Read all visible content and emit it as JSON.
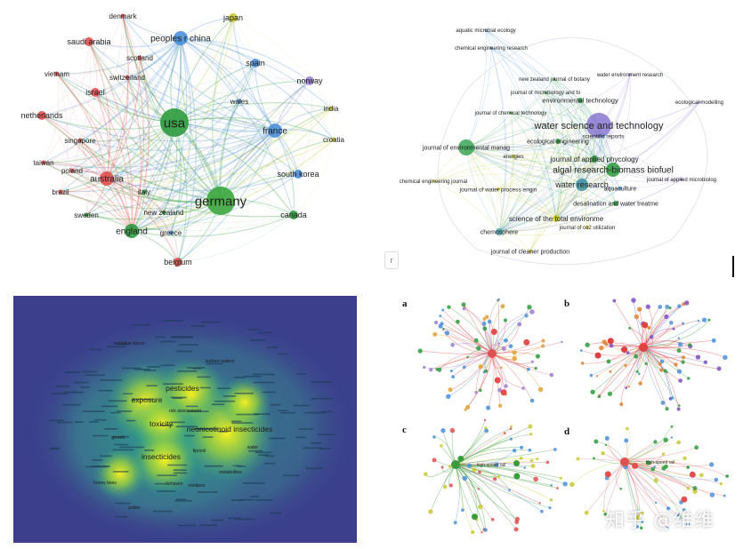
{
  "country_map": {
    "nodes": [
      {
        "label": "usa",
        "color": "#2e9b3e",
        "size": "xl"
      },
      {
        "label": "germany",
        "color": "#3aa63d",
        "size": "xl"
      },
      {
        "label": "peoples r china",
        "color": "#4a90d9",
        "size": "m"
      },
      {
        "label": "france",
        "color": "#4a90d9",
        "size": "m"
      },
      {
        "label": "spain",
        "color": "#4a90d9",
        "size": "s"
      },
      {
        "label": "japan",
        "color": "#c8c832",
        "size": "s"
      },
      {
        "label": "norway",
        "color": "#9b7fd1",
        "size": "s"
      },
      {
        "label": "india",
        "color": "#c8c832",
        "size": "xs"
      },
      {
        "label": "croatia",
        "color": "#c8c832",
        "size": "xs"
      },
      {
        "label": "south korea",
        "color": "#4a90d9",
        "size": "s"
      },
      {
        "label": "canada",
        "color": "#2e9b3e",
        "size": "s"
      },
      {
        "label": "wales",
        "color": "#4a90d9",
        "size": "xs"
      },
      {
        "label": "denmark",
        "color": "#e05050",
        "size": "xs"
      },
      {
        "label": "saudi arabia",
        "color": "#e05050",
        "size": "s"
      },
      {
        "label": "scotland",
        "color": "#e05050",
        "size": "xs"
      },
      {
        "label": "switzerland",
        "color": "#e05050",
        "size": "xs"
      },
      {
        "label": "vietnam",
        "color": "#e05050",
        "size": "xs"
      },
      {
        "label": "israel",
        "color": "#e05050",
        "size": "s"
      },
      {
        "label": "netherlands",
        "color": "#e05050",
        "size": "s"
      },
      {
        "label": "singapore",
        "color": "#e05050",
        "size": "xs"
      },
      {
        "label": "taiwan",
        "color": "#e05050",
        "size": "xs"
      },
      {
        "label": "poland",
        "color": "#e05050",
        "size": "xs"
      },
      {
        "label": "australia",
        "color": "#e05050",
        "size": "m"
      },
      {
        "label": "brazil",
        "color": "#e05050",
        "size": "xs"
      },
      {
        "label": "italy",
        "color": "#2e9b3e",
        "size": "xs"
      },
      {
        "label": "new zealand",
        "color": "#2e9b3e",
        "size": "xs"
      },
      {
        "label": "sweden",
        "color": "#2e9b3e",
        "size": "xs"
      },
      {
        "label": "england",
        "color": "#2e9b3e",
        "size": "m"
      },
      {
        "label": "greece",
        "color": "#4a90d9",
        "size": "xs"
      },
      {
        "label": "belgium",
        "color": "#e05050",
        "size": "s"
      }
    ]
  },
  "journal_map": {
    "nodes": [
      {
        "label": "aquatic microbial ecology",
        "color": "#4a90d9"
      },
      {
        "label": "chemical engineering research",
        "color": "#4a90d9"
      },
      {
        "label": "new zealand journal of botany",
        "color": "#2e9b3e"
      },
      {
        "label": "water environment research",
        "color": "#9b7fd1"
      },
      {
        "label": "journal of microbiology and bi",
        "color": "#2e9b3e"
      },
      {
        "label": "environmental technology",
        "color": "#2e9b3e"
      },
      {
        "label": "ecological modelling",
        "color": "#9b7fd1"
      },
      {
        "label": "journal of chemical technology",
        "color": "#2e9b3e"
      },
      {
        "label": "water science and technology",
        "color": "#8878d0"
      },
      {
        "label": "scientific reports",
        "color": "#4a90d9"
      },
      {
        "label": "ecological engineering",
        "color": "#2e9b3e"
      },
      {
        "label": "journal of environmental manag",
        "color": "#3aa655"
      },
      {
        "label": "energies",
        "color": "#c8c832"
      },
      {
        "label": "journal of applied phycology",
        "color": "#2e9b3e"
      },
      {
        "label": "algal research-biomass biofuel",
        "color": "#2e9b3e"
      },
      {
        "label": "chemical engineering journal",
        "color": "#c8c832"
      },
      {
        "label": "water research",
        "color": "#3a8fa0"
      },
      {
        "label": "journal of water process engin",
        "color": "#c8c832"
      },
      {
        "label": "aquaculture",
        "color": "#4a90d9"
      },
      {
        "label": "journal of applied microbiolog",
        "color": "#9b7fd1"
      },
      {
        "label": "desalination and water treatme",
        "color": "#2e9b3e"
      },
      {
        "label": "science of the total environme",
        "color": "#c8c832"
      },
      {
        "label": "journal of co2 utilization",
        "color": "#c8c832"
      },
      {
        "label": "chemosphere",
        "color": "#4aa0b0"
      },
      {
        "label": "journal of cleaner production",
        "color": "#c8c832"
      }
    ],
    "tab_label": "r"
  },
  "heatmap": {
    "background": "#3b3f8c",
    "terms": [
      {
        "label": "exposure",
        "major": true
      },
      {
        "label": "pesticides",
        "major": true
      },
      {
        "label": "toxicity",
        "major": true
      },
      {
        "label": "neonicotinoid insecticides",
        "major": true
      },
      {
        "label": "insecticides",
        "major": true
      },
      {
        "label": "surface waters",
        "major": false
      },
      {
        "label": "oxidative stress",
        "major": false
      },
      {
        "label": "risk assessment",
        "major": false
      },
      {
        "label": "fipronil",
        "major": false
      },
      {
        "label": "residues",
        "major": false
      },
      {
        "label": "water",
        "major": false
      },
      {
        "label": "growth",
        "major": false
      },
      {
        "label": "metabolites",
        "major": false
      },
      {
        "label": "honey bees",
        "major": false
      },
      {
        "label": "pollen",
        "major": false
      },
      {
        "label": "behavior",
        "major": false
      }
    ]
  },
  "quad_panels": [
    {
      "letter": "a",
      "highlight": ""
    },
    {
      "letter": "b",
      "highlight": ""
    },
    {
      "letter": "c",
      "highlight": "high-speed rail"
    },
    {
      "letter": "d",
      "highlight": "high-speed rail"
    }
  ],
  "watermark": "知乎 @维维"
}
